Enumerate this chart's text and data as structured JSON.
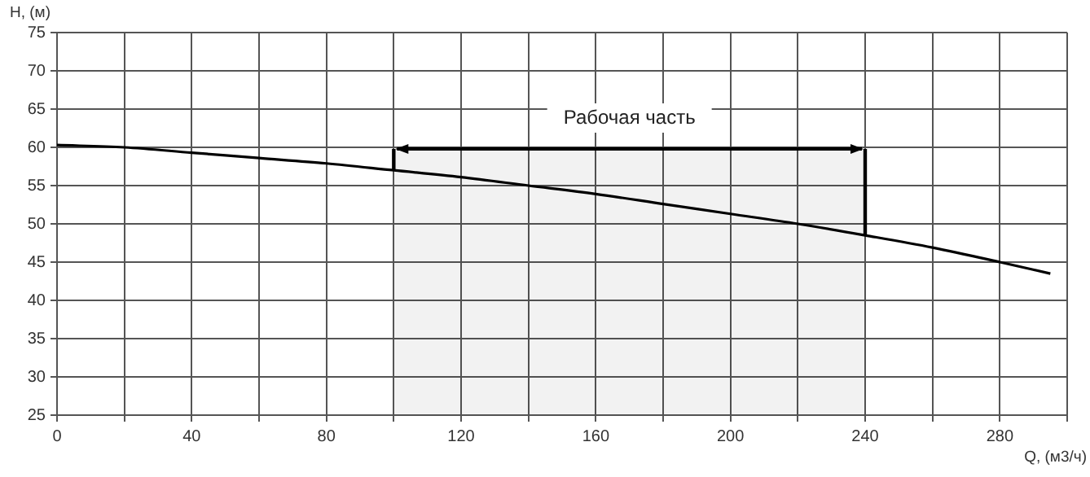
{
  "chart_data": {
    "type": "line",
    "xlabel": "Q, (м3/ч)",
    "ylabel": "H, (м)",
    "x": [
      0,
      20,
      40,
      60,
      80,
      100,
      120,
      140,
      160,
      180,
      200,
      220,
      240,
      260,
      280,
      295
    ],
    "series": [
      {
        "color": "#000000",
        "values": [
          60.3,
          60.0,
          59.3,
          58.6,
          57.9,
          57.0,
          56.1,
          55.0,
          53.9,
          52.6,
          51.3,
          50.0,
          48.5,
          46.9,
          45.0,
          43.5
        ]
      }
    ],
    "xlim": [
      0,
      300
    ],
    "ylim": [
      25,
      75
    ],
    "xticks": [
      0,
      {
        "value": 20,
        "label": null
      },
      40,
      {
        "value": 60,
        "label": null
      },
      80,
      {
        "value": 100,
        "label": null
      },
      120,
      {
        "value": 140,
        "label": null
      },
      160,
      {
        "value": 180,
        "label": null
      },
      200,
      {
        "value": 220,
        "label": null
      },
      240,
      {
        "value": 260,
        "label": null
      },
      280,
      {
        "value": 300,
        "label": null
      }
    ],
    "yticks": [
      25,
      30,
      35,
      40,
      45,
      50,
      55,
      60,
      65,
      70,
      75
    ],
    "bands": [
      {
        "axis": "x",
        "from": 100,
        "to": 240,
        "label": "Рабочая часть",
        "color": "#000000"
      }
    ],
    "grid": true,
    "legend": false,
    "marker": "none",
    "line_style": "solid"
  }
}
